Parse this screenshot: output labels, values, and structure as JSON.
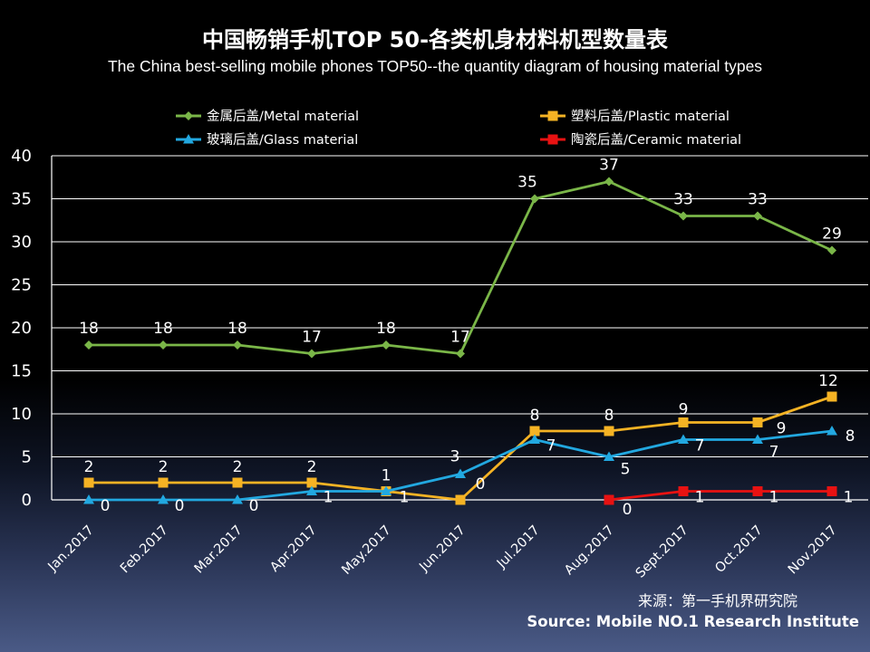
{
  "chart_data": {
    "type": "line",
    "title": "中国畅销手机TOP 50-各类机身材料机型数量表",
    "subtitle": "The China best-selling mobile phones TOP50--the quantity diagram of housing material types",
    "categories": [
      "Jan.2017",
      "Feb.2017",
      "Mar.2017",
      "Apr.2017",
      "May.2017",
      "Jun.2017",
      "Jul.2017",
      "Aug.2017",
      "Sept.2017",
      "Oct.2017",
      "Nov.2017"
    ],
    "ylim": [
      0,
      40
    ],
    "yticks": [
      "0",
      "5",
      "10",
      "15",
      "20",
      "25",
      "30",
      "35",
      "40"
    ],
    "grid": true,
    "legend_position": "top",
    "series": [
      {
        "name": "金属后盖/Metal material",
        "color": "#7ab648",
        "marker": "diamond",
        "values": [
          18,
          18,
          18,
          17,
          18,
          17,
          35,
          37,
          33,
          33,
          29
        ],
        "labels": [
          "18",
          "18",
          "18",
          "17",
          "18",
          "17",
          "35",
          "37",
          "33",
          "33",
          "29"
        ]
      },
      {
        "name": "塑料后盖/Plastic material",
        "color": "#f5b324",
        "marker": "square",
        "values": [
          2,
          2,
          2,
          2,
          1,
          0,
          8,
          8,
          9,
          9,
          12
        ],
        "labels": [
          "2",
          "2",
          "2",
          "2",
          "1",
          "0",
          "8",
          "8",
          "9",
          "9",
          "12"
        ]
      },
      {
        "name": "玻璃后盖/Glass material",
        "color": "#22a8e0",
        "marker": "triangle",
        "values": [
          0,
          0,
          0,
          1,
          1,
          3,
          7,
          5,
          7,
          7,
          8
        ],
        "labels": [
          "0",
          "0",
          "0",
          "1",
          "1",
          "3",
          "7",
          "5",
          "7",
          "7",
          "8"
        ]
      },
      {
        "name": "陶瓷后盖/Ceramic material",
        "color": "#e81212",
        "marker": "square",
        "values": [
          null,
          null,
          null,
          null,
          null,
          null,
          null,
          0,
          1,
          1,
          1
        ],
        "labels": [
          "",
          "",
          "",
          "",
          "",
          "",
          "",
          "0",
          "1",
          "1",
          "1"
        ]
      }
    ]
  },
  "source": {
    "cn": "来源：第一手机界研究院",
    "en": "Source: Mobile NO.1 Research Institute"
  }
}
